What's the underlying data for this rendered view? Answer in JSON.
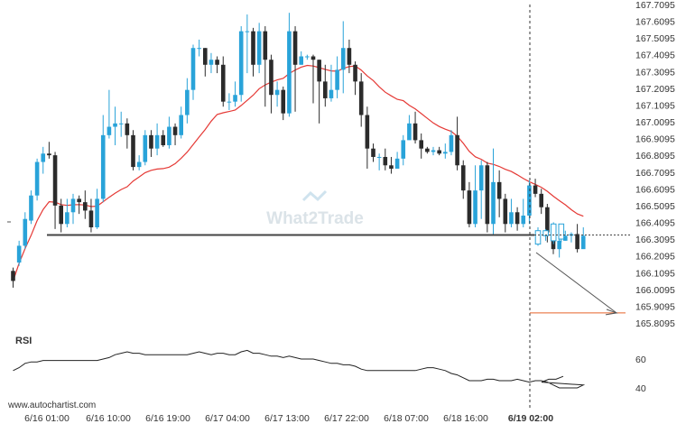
{
  "chart_data": {
    "type": "candlestick",
    "y_axis": {
      "ticks": [
        "167.7095",
        "167.6095",
        "167.5095",
        "167.4095",
        "167.3095",
        "167.2095",
        "167.1095",
        "167.0095",
        "166.9095",
        "166.8095",
        "166.7095",
        "166.6095",
        "166.5095",
        "166.4095",
        "166.3095",
        "166.2095",
        "166.1095",
        "166.0095",
        "165.9095",
        "165.8095"
      ],
      "range": [
        165.79,
        167.72
      ]
    },
    "x_axis": {
      "ticks": [
        "6/16 01:00",
        "6/16 10:00",
        "6/16 19:00",
        "6/17 04:00",
        "6/17 13:00",
        "6/17 22:00",
        "6/18 07:00",
        "6/18 16:00",
        "6/19 02:00"
      ]
    },
    "candles": [
      [
        166.12,
        166.06,
        166.14,
        166.02
      ],
      [
        166.17,
        166.27,
        166.3,
        166.15
      ],
      [
        166.27,
        166.43,
        166.47,
        166.25
      ],
      [
        166.42,
        166.57,
        166.6,
        166.4
      ],
      [
        166.57,
        166.77,
        166.79,
        166.54
      ],
      [
        166.77,
        166.82,
        166.86,
        166.7
      ],
      [
        166.82,
        166.81,
        166.89,
        166.79
      ],
      [
        166.81,
        166.51,
        166.83,
        166.37
      ],
      [
        166.51,
        166.4,
        166.55,
        166.35
      ],
      [
        166.4,
        166.47,
        166.55,
        166.38
      ],
      [
        166.47,
        166.55,
        166.58,
        166.4
      ],
      [
        166.55,
        166.53,
        166.57,
        166.46
      ],
      [
        166.53,
        166.48,
        166.6,
        166.43
      ],
      [
        166.48,
        166.38,
        166.55,
        166.35
      ],
      [
        166.38,
        166.55,
        166.61,
        166.37
      ],
      [
        166.55,
        166.93,
        167.05,
        166.53
      ],
      [
        166.93,
        166.98,
        167.2,
        166.91
      ],
      [
        166.98,
        167.0,
        167.1,
        166.87
      ],
      [
        167.0,
        167.0,
        167.07,
        166.92
      ],
      [
        167.0,
        166.93,
        167.03,
        166.85
      ],
      [
        166.93,
        166.74,
        166.96,
        166.72
      ],
      [
        166.74,
        166.77,
        166.81,
        166.72
      ],
      [
        166.77,
        166.93,
        166.96,
        166.75
      ],
      [
        166.93,
        166.85,
        166.96,
        166.8
      ],
      [
        166.85,
        166.93,
        167.0,
        166.81
      ],
      [
        166.93,
        166.87,
        166.96,
        166.86
      ],
      [
        166.87,
        166.98,
        167.04,
        166.85
      ],
      [
        166.98,
        166.93,
        167.0,
        166.87
      ],
      [
        166.93,
        167.05,
        167.1,
        166.91
      ],
      [
        167.05,
        167.2,
        167.27,
        167.0
      ],
      [
        167.2,
        167.45,
        167.47,
        167.14
      ],
      [
        167.45,
        167.45,
        167.5,
        167.4
      ],
      [
        167.45,
        167.35,
        167.45,
        167.28
      ],
      [
        167.35,
        167.38,
        167.42,
        167.3
      ],
      [
        167.38,
        167.35,
        167.4,
        167.3
      ],
      [
        167.35,
        167.13,
        167.4,
        167.1
      ],
      [
        167.13,
        167.13,
        167.18,
        167.08
      ],
      [
        167.13,
        167.17,
        167.25,
        167.1
      ],
      [
        167.17,
        167.55,
        167.58,
        167.13
      ],
      [
        167.55,
        167.55,
        167.65,
        167.3
      ],
      [
        167.55,
        167.35,
        167.57,
        167.28
      ],
      [
        167.35,
        167.55,
        167.6,
        167.3
      ],
      [
        167.55,
        167.38,
        167.58,
        167.1
      ],
      [
        167.38,
        167.17,
        167.41,
        167.06
      ],
      [
        167.17,
        167.2,
        167.25,
        167.1
      ],
      [
        167.2,
        167.06,
        167.22,
        167.02
      ],
      [
        167.06,
        167.55,
        167.66,
        167.04
      ],
      [
        167.55,
        167.35,
        167.58,
        167.07
      ],
      [
        167.35,
        167.4,
        167.43,
        167.35
      ],
      [
        167.4,
        167.4,
        167.41,
        167.38
      ],
      [
        167.4,
        167.38,
        167.41,
        167.12
      ],
      [
        167.38,
        167.25,
        167.38,
        167.0
      ],
      [
        167.25,
        167.15,
        167.35,
        167.1
      ],
      [
        167.15,
        167.2,
        167.35,
        167.13
      ],
      [
        167.2,
        167.32,
        167.4,
        167.15
      ],
      [
        167.32,
        167.45,
        167.61,
        167.18
      ],
      [
        167.45,
        167.35,
        167.5,
        167.3
      ],
      [
        167.35,
        167.25,
        167.37,
        167.17
      ],
      [
        167.25,
        167.05,
        167.3,
        166.98
      ],
      [
        167.05,
        166.85,
        167.1,
        166.73
      ],
      [
        166.85,
        166.8,
        166.88,
        166.77
      ],
      [
        166.8,
        166.8,
        166.82,
        166.72
      ],
      [
        166.8,
        166.75,
        166.85,
        166.72
      ],
      [
        166.75,
        166.73,
        166.8,
        166.7
      ],
      [
        166.73,
        166.79,
        166.83,
        166.77
      ],
      [
        166.79,
        166.9,
        166.93,
        166.75
      ],
      [
        166.9,
        167.0,
        167.05,
        166.95
      ],
      [
        167.0,
        166.9,
        167.07,
        166.88
      ],
      [
        166.9,
        166.85,
        166.94,
        166.79
      ],
      [
        166.85,
        166.83,
        166.86,
        166.82
      ],
      [
        166.83,
        166.84,
        166.86,
        166.81
      ],
      [
        166.84,
        166.82,
        166.86,
        166.81
      ],
      [
        166.82,
        166.83,
        166.88,
        166.79
      ],
      [
        166.83,
        166.93,
        166.96,
        166.81
      ],
      [
        166.93,
        166.75,
        167.04,
        166.72
      ],
      [
        166.75,
        166.6,
        166.78,
        166.55
      ],
      [
        166.6,
        166.4,
        166.65,
        166.38
      ],
      [
        166.4,
        166.6,
        166.75,
        166.38
      ],
      [
        166.6,
        166.75,
        166.78,
        166.43
      ],
      [
        166.75,
        166.4,
        166.77,
        166.35
      ],
      [
        166.4,
        166.65,
        166.85,
        166.33
      ],
      [
        166.65,
        166.55,
        166.72,
        166.44
      ],
      [
        166.55,
        166.4,
        166.58,
        166.35
      ],
      [
        166.4,
        166.47,
        166.55,
        166.38
      ],
      [
        166.47,
        166.4,
        166.5,
        166.36
      ],
      [
        166.4,
        166.45,
        166.55,
        166.38
      ],
      [
        166.45,
        166.63,
        166.66,
        166.4
      ],
      [
        166.63,
        166.58,
        166.67,
        166.56
      ],
      [
        166.58,
        166.5,
        166.61,
        166.46
      ],
      [
        166.5,
        166.35,
        166.52,
        166.29
      ],
      [
        166.35,
        166.25,
        166.4,
        166.22
      ],
      [
        166.25,
        166.3,
        166.35,
        166.2
      ],
      [
        166.3,
        166.33,
        166.36,
        166.3
      ],
      [
        166.33,
        166.34,
        166.35,
        166.29
      ],
      [
        166.34,
        166.25,
        166.4,
        166.23
      ],
      [
        166.25,
        166.33,
        166.38,
        166.27
      ]
    ],
    "current_price": 166.3345,
    "support_level": 166.3345,
    "forecast_level": 165.8695,
    "rsi_label": "RSI",
    "rsi_ticks": [
      "60",
      "40"
    ],
    "rsi_range": [
      30,
      75
    ]
  },
  "watermark_brand": "What2Trade",
  "footer_url": "www.autochartist.com",
  "colors": {
    "bull": "#29a3d9",
    "bear": "#2b2b2b",
    "ma": "#e53935",
    "support": "#444444",
    "forecast": "#e8652a",
    "grid_text": "#333333"
  }
}
